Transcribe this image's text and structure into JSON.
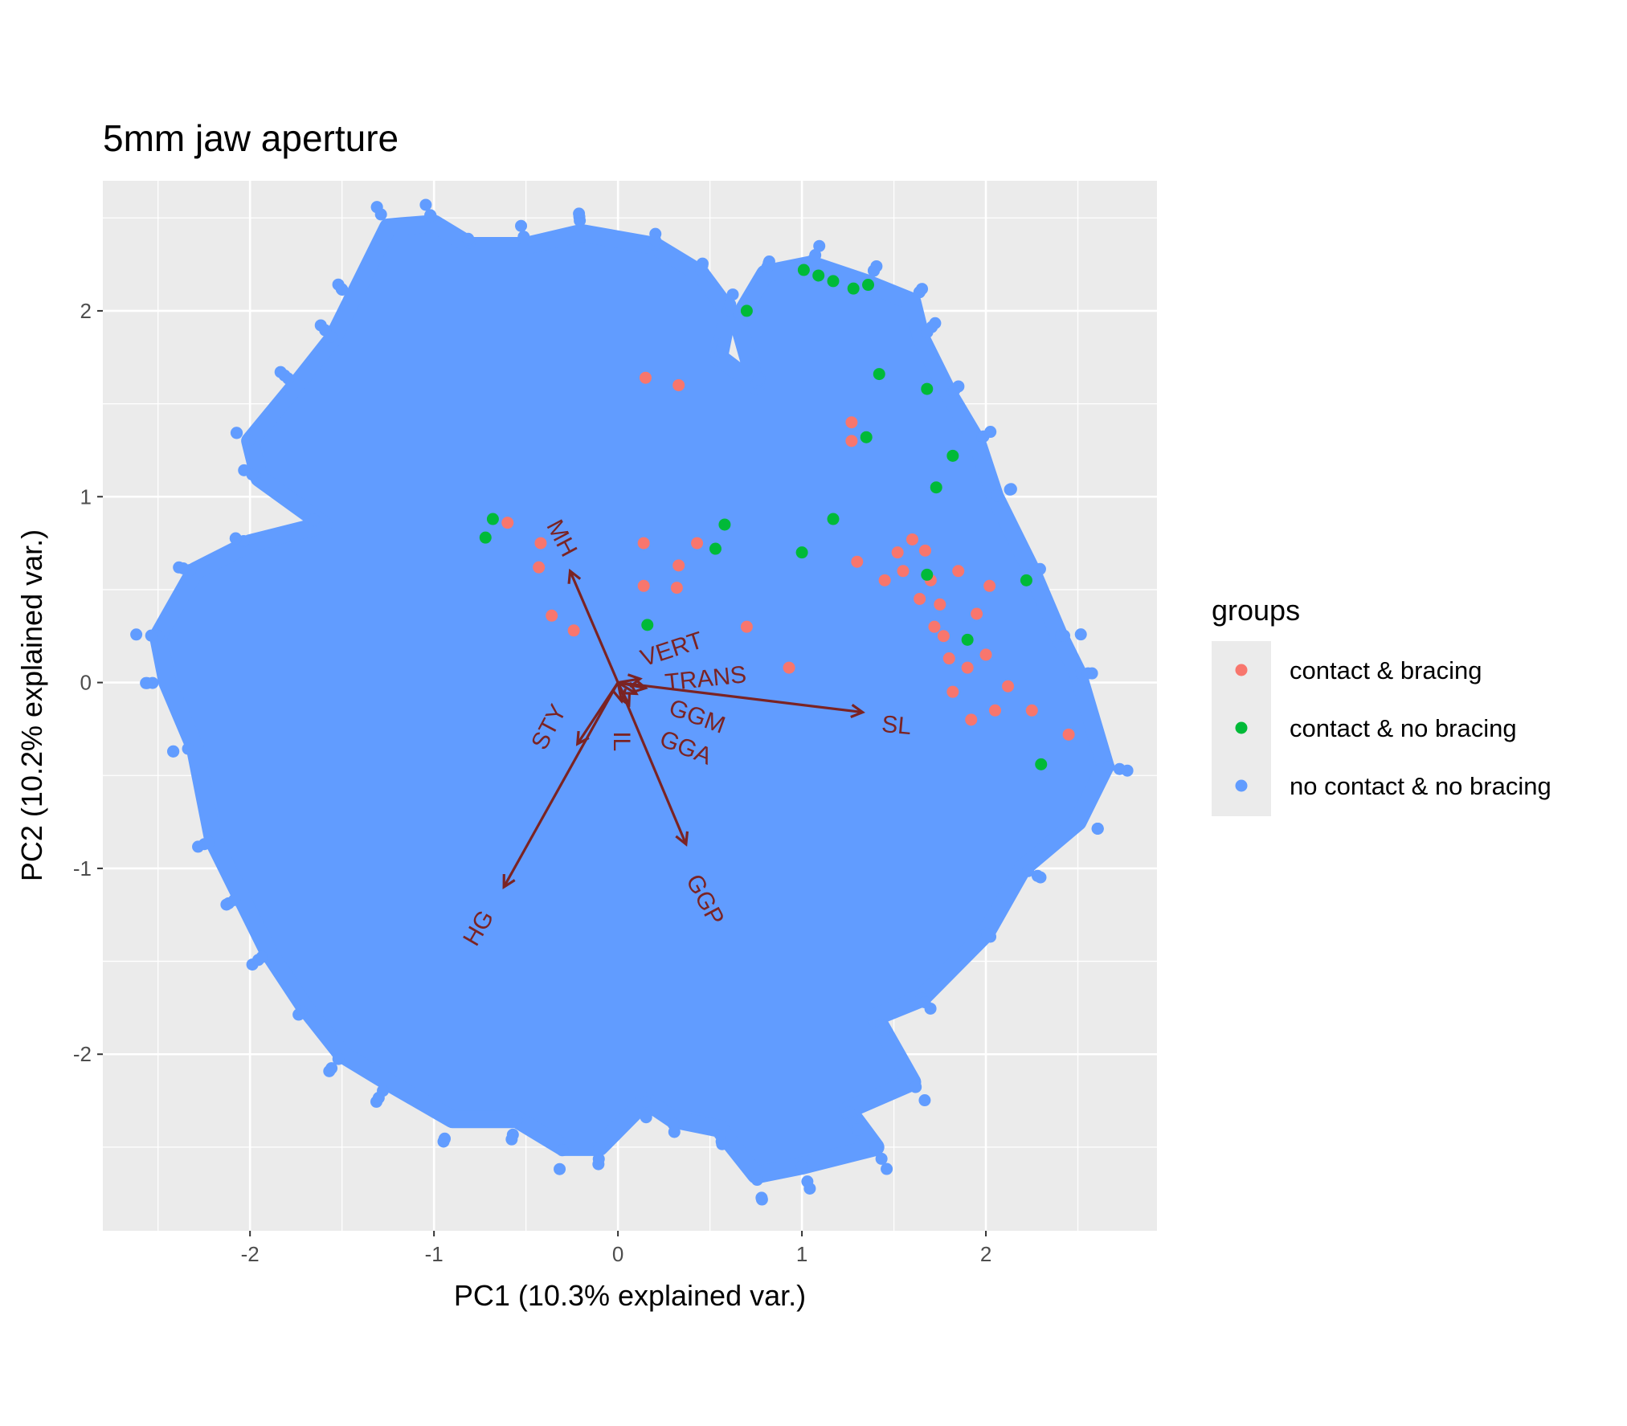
{
  "chart_data": {
    "type": "scatter",
    "title": "5mm jaw aperture",
    "xlabel": "PC1 (10.3% explained var.)",
    "ylabel": "PC2 (10.2% explained var.)",
    "xlim": [
      -2.8,
      2.93
    ],
    "ylim": [
      -2.95,
      2.7
    ],
    "x_ticks": [
      -2,
      -1,
      0,
      1,
      2
    ],
    "y_ticks": [
      -2,
      -1,
      0,
      1,
      2
    ],
    "grid": true,
    "legend": {
      "title": "groups",
      "position": "right",
      "entries": [
        {
          "label": "contact & bracing",
          "color": "#F8766D"
        },
        {
          "label": "contact & no bracing",
          "color": "#00BA38"
        },
        {
          "label": "no contact & no bracing",
          "color": "#619CFF"
        }
      ]
    },
    "point_cloud": {
      "group": "no contact & no bracing",
      "color": "#619CFF",
      "outline": [
        [
          -2.5,
          0.25
        ],
        [
          -2.3,
          0.6
        ],
        [
          -2.0,
          0.75
        ],
        [
          -1.6,
          0.85
        ],
        [
          -1.95,
          1.1
        ],
        [
          -2.0,
          1.3
        ],
        [
          -1.75,
          1.6
        ],
        [
          -1.55,
          1.85
        ],
        [
          -1.45,
          2.05
        ],
        [
          -1.25,
          2.45
        ],
        [
          -1.0,
          2.47
        ],
        [
          -0.8,
          2.35
        ],
        [
          -0.5,
          2.35
        ],
        [
          -0.2,
          2.42
        ],
        [
          0.2,
          2.35
        ],
        [
          0.45,
          2.2
        ],
        [
          0.6,
          2.0
        ],
        [
          0.55,
          1.75
        ],
        [
          0.75,
          1.6
        ],
        [
          0.65,
          1.95
        ],
        [
          0.8,
          2.2
        ],
        [
          1.05,
          2.25
        ],
        [
          1.35,
          2.15
        ],
        [
          1.6,
          2.05
        ],
        [
          1.65,
          1.85
        ],
        [
          1.8,
          1.55
        ],
        [
          1.95,
          1.3
        ],
        [
          2.05,
          1.0
        ],
        [
          2.25,
          0.6
        ],
        [
          2.4,
          0.25
        ],
        [
          2.5,
          0.05
        ],
        [
          2.65,
          -0.45
        ],
        [
          2.5,
          -0.75
        ],
        [
          2.2,
          -1.0
        ],
        [
          2.0,
          -1.35
        ],
        [
          1.65,
          -1.7
        ],
        [
          1.4,
          -1.8
        ],
        [
          1.6,
          -2.15
        ],
        [
          1.25,
          -2.3
        ],
        [
          1.4,
          -2.5
        ],
        [
          1.0,
          -2.6
        ],
        [
          0.75,
          -2.65
        ],
        [
          0.55,
          -2.4
        ],
        [
          0.3,
          -2.35
        ],
        [
          0.15,
          -2.25
        ],
        [
          -0.1,
          -2.5
        ],
        [
          -0.3,
          -2.5
        ],
        [
          -0.55,
          -2.35
        ],
        [
          -0.9,
          -2.35
        ],
        [
          -1.25,
          -2.15
        ],
        [
          -1.5,
          -2.0
        ],
        [
          -1.7,
          -1.75
        ],
        [
          -1.9,
          -1.45
        ],
        [
          -2.05,
          -1.15
        ],
        [
          -2.2,
          -0.85
        ],
        [
          -2.3,
          -0.35
        ],
        [
          -2.45,
          0.0
        ]
      ]
    },
    "visible_points": [
      {
        "group": "contact & bracing",
        "x": 0.15,
        "y": 1.64
      },
      {
        "group": "contact & bracing",
        "x": 0.33,
        "y": 1.6
      },
      {
        "group": "contact & bracing",
        "x": -0.6,
        "y": 0.86
      },
      {
        "group": "contact & bracing",
        "x": -0.42,
        "y": 0.75
      },
      {
        "group": "contact & bracing",
        "x": -0.43,
        "y": 0.62
      },
      {
        "group": "contact & bracing",
        "x": -0.36,
        "y": 0.36
      },
      {
        "group": "contact & bracing",
        "x": -0.24,
        "y": 0.28
      },
      {
        "group": "contact & bracing",
        "x": 0.14,
        "y": 0.75
      },
      {
        "group": "contact & bracing",
        "x": 0.14,
        "y": 0.52
      },
      {
        "group": "contact & bracing",
        "x": 0.33,
        "y": 0.63
      },
      {
        "group": "contact & bracing",
        "x": 0.32,
        "y": 0.51
      },
      {
        "group": "contact & bracing",
        "x": 0.43,
        "y": 0.75
      },
      {
        "group": "contact & bracing",
        "x": 0.7,
        "y": 0.3
      },
      {
        "group": "contact & bracing",
        "x": 0.93,
        "y": 0.08
      },
      {
        "group": "contact & bracing",
        "x": 1.27,
        "y": 1.4
      },
      {
        "group": "contact & bracing",
        "x": 1.27,
        "y": 1.3
      },
      {
        "group": "contact & bracing",
        "x": 1.3,
        "y": 0.65
      },
      {
        "group": "contact & bracing",
        "x": 1.45,
        "y": 0.55
      },
      {
        "group": "contact & bracing",
        "x": 1.52,
        "y": 0.7
      },
      {
        "group": "contact & bracing",
        "x": 1.55,
        "y": 0.6
      },
      {
        "group": "contact & bracing",
        "x": 1.6,
        "y": 0.77
      },
      {
        "group": "contact & bracing",
        "x": 1.64,
        "y": 0.45
      },
      {
        "group": "contact & bracing",
        "x": 1.67,
        "y": 0.71
      },
      {
        "group": "contact & bracing",
        "x": 1.7,
        "y": 0.55
      },
      {
        "group": "contact & bracing",
        "x": 1.72,
        "y": 0.3
      },
      {
        "group": "contact & bracing",
        "x": 1.75,
        "y": 0.42
      },
      {
        "group": "contact & bracing",
        "x": 1.77,
        "y": 0.25
      },
      {
        "group": "contact & bracing",
        "x": 1.8,
        "y": 0.13
      },
      {
        "group": "contact & bracing",
        "x": 1.82,
        "y": -0.05
      },
      {
        "group": "contact & bracing",
        "x": 1.85,
        "y": 0.6
      },
      {
        "group": "contact & bracing",
        "x": 1.9,
        "y": 0.08
      },
      {
        "group": "contact & bracing",
        "x": 1.92,
        "y": -0.2
      },
      {
        "group": "contact & bracing",
        "x": 1.95,
        "y": 0.37
      },
      {
        "group": "contact & bracing",
        "x": 2.0,
        "y": 0.15
      },
      {
        "group": "contact & bracing",
        "x": 2.02,
        "y": 0.52
      },
      {
        "group": "contact & bracing",
        "x": 2.05,
        "y": -0.15
      },
      {
        "group": "contact & bracing",
        "x": 2.12,
        "y": -0.02
      },
      {
        "group": "contact & bracing",
        "x": 2.25,
        "y": -0.15
      },
      {
        "group": "contact & bracing",
        "x": 2.45,
        "y": -0.28
      },
      {
        "group": "contact & no bracing",
        "x": 1.01,
        "y": 2.22
      },
      {
        "group": "contact & no bracing",
        "x": 1.09,
        "y": 2.19
      },
      {
        "group": "contact & no bracing",
        "x": 1.17,
        "y": 2.16
      },
      {
        "group": "contact & no bracing",
        "x": 1.28,
        "y": 2.12
      },
      {
        "group": "contact & no bracing",
        "x": 1.36,
        "y": 2.14
      },
      {
        "group": "contact & no bracing",
        "x": 0.7,
        "y": 2.0
      },
      {
        "group": "contact & no bracing",
        "x": 1.42,
        "y": 1.66
      },
      {
        "group": "contact & no bracing",
        "x": 1.68,
        "y": 1.58
      },
      {
        "group": "contact & no bracing",
        "x": 1.35,
        "y": 1.32
      },
      {
        "group": "contact & no bracing",
        "x": 1.82,
        "y": 1.22
      },
      {
        "group": "contact & no bracing",
        "x": 1.73,
        "y": 1.05
      },
      {
        "group": "contact & no bracing",
        "x": -0.68,
        "y": 0.88
      },
      {
        "group": "contact & no bracing",
        "x": -0.72,
        "y": 0.78
      },
      {
        "group": "contact & no bracing",
        "x": 0.58,
        "y": 0.85
      },
      {
        "group": "contact & no bracing",
        "x": 0.53,
        "y": 0.72
      },
      {
        "group": "contact & no bracing",
        "x": 1.0,
        "y": 0.7
      },
      {
        "group": "contact & no bracing",
        "x": 1.17,
        "y": 0.88
      },
      {
        "group": "contact & no bracing",
        "x": 0.16,
        "y": 0.31
      },
      {
        "group": "contact & no bracing",
        "x": 1.68,
        "y": 0.58
      },
      {
        "group": "contact & no bracing",
        "x": 1.9,
        "y": 0.23
      },
      {
        "group": "contact & no bracing",
        "x": 2.3,
        "y": -0.44
      },
      {
        "group": "contact & no bracing",
        "x": 2.22,
        "y": 0.55
      }
    ],
    "loadings": [
      {
        "label": "MH",
        "x": -0.26,
        "y": 0.6
      },
      {
        "label": "SL",
        "x": 1.33,
        "y": -0.16
      },
      {
        "label": "GGP",
        "x": 0.37,
        "y": -0.87
      },
      {
        "label": "HG",
        "x": -0.62,
        "y": -1.1
      },
      {
        "label": "STY",
        "x": -0.22,
        "y": -0.33
      },
      {
        "label": "GGA",
        "x": 0.06,
        "y": -0.12
      },
      {
        "label": "GGM",
        "x": 0.1,
        "y": -0.06
      },
      {
        "label": "TRANS",
        "x": 0.15,
        "y": -0.03
      },
      {
        "label": "VERT",
        "x": 0.12,
        "y": 0.02
      },
      {
        "label": "IL",
        "x": 0.02,
        "y": -0.1
      }
    ]
  }
}
